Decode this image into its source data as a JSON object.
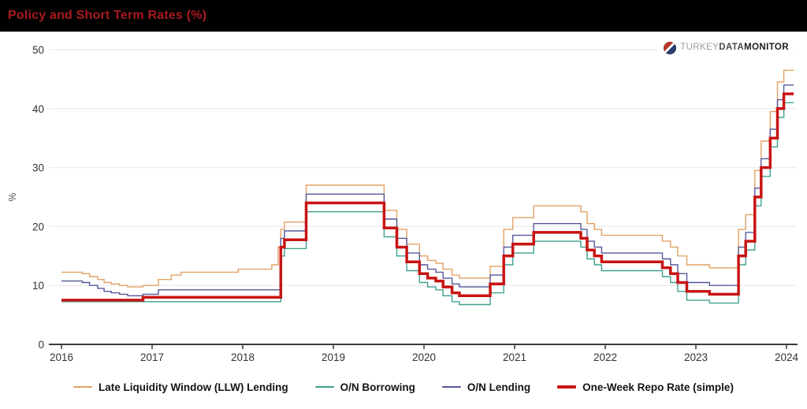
{
  "header": {
    "title": "Policy and Short Term Rates (%)"
  },
  "logo": {
    "part1": "TURKEY",
    "part2": "DATA",
    "part3": "MONITOR",
    "mark": "globe-icon"
  },
  "chart_data": {
    "type": "line",
    "subtype": "step-after",
    "title": "Policy and Short Term Rates (%)",
    "xlabel": "",
    "ylabel": "%",
    "xlim": [
      2016,
      2024.08
    ],
    "ylim": [
      0,
      50
    ],
    "x_ticks": [
      2016,
      2017,
      2018,
      2019,
      2020,
      2021,
      2022,
      2023,
      2024
    ],
    "y_ticks": [
      0,
      10,
      20,
      30,
      40,
      50
    ],
    "grid": "horizontal",
    "legend_position": "bottom",
    "colors": {
      "grid": "#ececec",
      "axis": "#3b3b3b",
      "tick_text": "#333333",
      "header_bg": "#000000",
      "title_text": "#a9191e"
    },
    "series": [
      {
        "name": "Late Liquidity Window (LLW) Lending",
        "color": "#e2a264",
        "width": 1.4,
        "points": [
          [
            2016.0,
            12.25
          ],
          [
            2016.23,
            12.0
          ],
          [
            2016.31,
            11.5
          ],
          [
            2016.4,
            11.0
          ],
          [
            2016.47,
            10.5
          ],
          [
            2016.55,
            10.25
          ],
          [
            2016.64,
            10.0
          ],
          [
            2016.73,
            9.75
          ],
          [
            2016.9,
            10.0
          ],
          [
            2017.07,
            11.0
          ],
          [
            2017.21,
            11.75
          ],
          [
            2017.32,
            12.25
          ],
          [
            2017.95,
            12.75
          ],
          [
            2018.32,
            13.5
          ],
          [
            2018.39,
            16.5
          ],
          [
            2018.42,
            19.5
          ],
          [
            2018.46,
            20.75
          ],
          [
            2018.7,
            27.0
          ],
          [
            2019.56,
            22.75
          ],
          [
            2019.7,
            19.5
          ],
          [
            2019.81,
            17.0
          ],
          [
            2019.95,
            15.0
          ],
          [
            2020.04,
            14.25
          ],
          [
            2020.13,
            13.75
          ],
          [
            2020.21,
            12.75
          ],
          [
            2020.31,
            11.75
          ],
          [
            2020.39,
            11.25
          ],
          [
            2020.73,
            13.25
          ],
          [
            2020.88,
            19.5
          ],
          [
            2020.98,
            21.5
          ],
          [
            2021.21,
            23.5
          ],
          [
            2021.73,
            22.5
          ],
          [
            2021.8,
            20.5
          ],
          [
            2021.88,
            19.5
          ],
          [
            2021.96,
            18.5
          ],
          [
            2022.63,
            17.5
          ],
          [
            2022.72,
            16.5
          ],
          [
            2022.8,
            15.0
          ],
          [
            2022.9,
            13.5
          ],
          [
            2023.15,
            13.0
          ],
          [
            2023.47,
            19.5
          ],
          [
            2023.55,
            22.0
          ],
          [
            2023.65,
            29.5
          ],
          [
            2023.72,
            34.5
          ],
          [
            2023.82,
            39.5
          ],
          [
            2023.9,
            44.5
          ],
          [
            2023.97,
            46.5
          ]
        ]
      },
      {
        "name": "O/N Borrowing",
        "color": "#3fa08f",
        "width": 1.4,
        "points": [
          [
            2016.0,
            7.25
          ],
          [
            2018.42,
            15.0
          ],
          [
            2018.46,
            16.25
          ],
          [
            2018.7,
            22.5
          ],
          [
            2019.56,
            18.25
          ],
          [
            2019.7,
            15.0
          ],
          [
            2019.81,
            12.5
          ],
          [
            2019.95,
            10.5
          ],
          [
            2020.04,
            9.75
          ],
          [
            2020.13,
            9.25
          ],
          [
            2020.21,
            8.25
          ],
          [
            2020.31,
            7.25
          ],
          [
            2020.39,
            6.75
          ],
          [
            2020.73,
            8.75
          ],
          [
            2020.88,
            13.5
          ],
          [
            2020.98,
            15.5
          ],
          [
            2021.21,
            17.5
          ],
          [
            2021.73,
            16.5
          ],
          [
            2021.8,
            14.5
          ],
          [
            2021.88,
            13.5
          ],
          [
            2021.96,
            12.5
          ],
          [
            2022.63,
            11.5
          ],
          [
            2022.72,
            10.5
          ],
          [
            2022.8,
            9.0
          ],
          [
            2022.9,
            7.5
          ],
          [
            2023.15,
            7.0
          ],
          [
            2023.47,
            13.5
          ],
          [
            2023.55,
            16.0
          ],
          [
            2023.65,
            23.5
          ],
          [
            2023.72,
            28.5
          ],
          [
            2023.82,
            33.5
          ],
          [
            2023.9,
            38.5
          ],
          [
            2023.97,
            41.0
          ]
        ]
      },
      {
        "name": "O/N Lending",
        "color": "#54589b",
        "width": 1.4,
        "points": [
          [
            2016.0,
            10.75
          ],
          [
            2016.23,
            10.5
          ],
          [
            2016.31,
            10.0
          ],
          [
            2016.4,
            9.5
          ],
          [
            2016.47,
            9.0
          ],
          [
            2016.55,
            8.75
          ],
          [
            2016.64,
            8.5
          ],
          [
            2016.73,
            8.25
          ],
          [
            2016.9,
            8.5
          ],
          [
            2017.07,
            9.25
          ],
          [
            2018.42,
            18.0
          ],
          [
            2018.46,
            19.25
          ],
          [
            2018.7,
            25.5
          ],
          [
            2019.56,
            21.25
          ],
          [
            2019.7,
            18.0
          ],
          [
            2019.81,
            15.5
          ],
          [
            2019.95,
            13.5
          ],
          [
            2020.04,
            12.75
          ],
          [
            2020.13,
            12.25
          ],
          [
            2020.21,
            11.25
          ],
          [
            2020.31,
            10.25
          ],
          [
            2020.39,
            9.75
          ],
          [
            2020.73,
            11.75
          ],
          [
            2020.88,
            16.5
          ],
          [
            2020.98,
            18.5
          ],
          [
            2021.21,
            20.5
          ],
          [
            2021.73,
            19.5
          ],
          [
            2021.8,
            17.5
          ],
          [
            2021.88,
            16.5
          ],
          [
            2021.96,
            15.5
          ],
          [
            2022.63,
            14.5
          ],
          [
            2022.72,
            13.5
          ],
          [
            2022.8,
            12.0
          ],
          [
            2022.9,
            10.5
          ],
          [
            2023.15,
            10.0
          ],
          [
            2023.47,
            16.5
          ],
          [
            2023.55,
            19.0
          ],
          [
            2023.65,
            26.5
          ],
          [
            2023.72,
            31.5
          ],
          [
            2023.82,
            36.5
          ],
          [
            2023.9,
            41.5
          ],
          [
            2023.97,
            44.0
          ]
        ]
      },
      {
        "name": "One-Week Repo Rate (simple)",
        "color": "#c81414",
        "width": 3.5,
        "points": [
          [
            2016.0,
            7.5
          ],
          [
            2016.9,
            8.0
          ],
          [
            2018.42,
            16.5
          ],
          [
            2018.46,
            17.75
          ],
          [
            2018.7,
            24.0
          ],
          [
            2019.56,
            19.75
          ],
          [
            2019.7,
            16.5
          ],
          [
            2019.81,
            14.0
          ],
          [
            2019.95,
            12.0
          ],
          [
            2020.04,
            11.25
          ],
          [
            2020.13,
            10.75
          ],
          [
            2020.21,
            9.75
          ],
          [
            2020.31,
            8.75
          ],
          [
            2020.39,
            8.25
          ],
          [
            2020.73,
            10.25
          ],
          [
            2020.88,
            15.0
          ],
          [
            2020.98,
            17.0
          ],
          [
            2021.21,
            19.0
          ],
          [
            2021.73,
            18.0
          ],
          [
            2021.8,
            16.0
          ],
          [
            2021.88,
            15.0
          ],
          [
            2021.96,
            14.0
          ],
          [
            2022.63,
            13.0
          ],
          [
            2022.72,
            12.0
          ],
          [
            2022.8,
            10.5
          ],
          [
            2022.9,
            9.0
          ],
          [
            2023.15,
            8.5
          ],
          [
            2023.47,
            15.0
          ],
          [
            2023.55,
            17.5
          ],
          [
            2023.65,
            25.0
          ],
          [
            2023.72,
            30.0
          ],
          [
            2023.82,
            35.0
          ],
          [
            2023.9,
            40.0
          ],
          [
            2023.97,
            42.5
          ]
        ]
      }
    ]
  }
}
